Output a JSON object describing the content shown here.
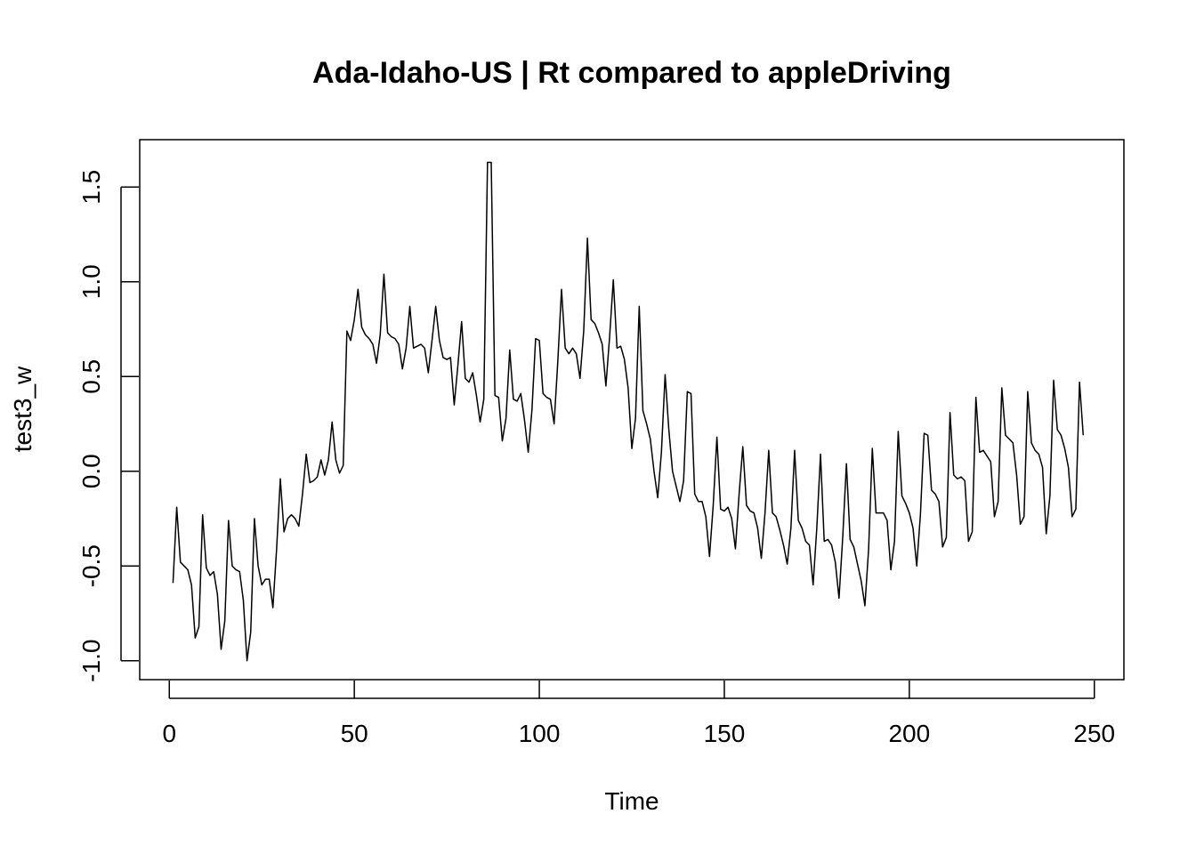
{
  "chart_data": {
    "type": "line",
    "title": "Ada-Idaho-US | Rt compared to appleDriving",
    "xlabel": "Time",
    "ylabel": "test3_w",
    "xlim": [
      -8,
      258
    ],
    "ylim": [
      -1.1,
      1.75
    ],
    "x_ticks": [
      0,
      50,
      100,
      150,
      200,
      250
    ],
    "y_ticks": [
      -1.0,
      -0.5,
      0.0,
      0.5,
      1.0,
      1.5
    ],
    "x_tick_labels": [
      "0",
      "50",
      "100",
      "150",
      "200",
      "250"
    ],
    "y_tick_labels": [
      "-1.0",
      "-0.5",
      "0.0",
      "0.5",
      "1.0",
      "1.5"
    ],
    "grid": false,
    "series": [
      {
        "x_start": 1,
        "values": [
          -0.59,
          -0.19,
          -0.48,
          -0.5,
          -0.52,
          -0.6,
          -0.88,
          -0.82,
          -0.23,
          -0.51,
          -0.55,
          -0.53,
          -0.65,
          -0.94,
          -0.79,
          -0.26,
          -0.5,
          -0.52,
          -0.53,
          -0.68,
          -1.0,
          -0.85,
          -0.25,
          -0.5,
          -0.6,
          -0.57,
          -0.57,
          -0.72,
          -0.41,
          -0.04,
          -0.32,
          -0.25,
          -0.23,
          -0.25,
          -0.29,
          -0.12,
          0.09,
          -0.06,
          -0.05,
          -0.03,
          0.06,
          -0.02,
          0.06,
          0.26,
          0.06,
          -0.01,
          0.03,
          0.74,
          0.69,
          0.8,
          0.96,
          0.76,
          0.72,
          0.7,
          0.67,
          0.57,
          0.72,
          1.04,
          0.73,
          0.71,
          0.7,
          0.67,
          0.54,
          0.65,
          0.87,
          0.65,
          0.66,
          0.67,
          0.65,
          0.52,
          0.69,
          0.87,
          0.69,
          0.6,
          0.59,
          0.6,
          0.35,
          0.56,
          0.79,
          0.49,
          0.47,
          0.52,
          0.4,
          0.26,
          0.38,
          1.63,
          1.63,
          0.4,
          0.39,
          0.16,
          0.28,
          0.64,
          0.38,
          0.37,
          0.41,
          0.27,
          0.1,
          0.32,
          0.7,
          0.69,
          0.41,
          0.39,
          0.38,
          0.25,
          0.58,
          0.96,
          0.65,
          0.62,
          0.65,
          0.62,
          0.49,
          0.74,
          1.23,
          0.8,
          0.78,
          0.73,
          0.67,
          0.45,
          0.71,
          1.01,
          0.65,
          0.66,
          0.59,
          0.44,
          0.12,
          0.28,
          0.87,
          0.32,
          0.25,
          0.17,
          0.0,
          -0.14,
          0.1,
          0.51,
          0.22,
          0.0,
          -0.08,
          -0.16,
          -0.05,
          0.42,
          0.41,
          -0.12,
          -0.16,
          -0.16,
          -0.24,
          -0.45,
          -0.18,
          0.18,
          -0.2,
          -0.21,
          -0.19,
          -0.25,
          -0.41,
          -0.12,
          0.13,
          -0.18,
          -0.21,
          -0.22,
          -0.3,
          -0.46,
          -0.22,
          0.11,
          -0.22,
          -0.24,
          -0.31,
          -0.39,
          -0.49,
          -0.3,
          0.11,
          -0.26,
          -0.3,
          -0.37,
          -0.39,
          -0.6,
          -0.3,
          0.09,
          -0.37,
          -0.36,
          -0.39,
          -0.48,
          -0.67,
          -0.35,
          0.04,
          -0.36,
          -0.4,
          -0.49,
          -0.58,
          -0.71,
          -0.41,
          0.12,
          -0.22,
          -0.22,
          -0.22,
          -0.26,
          -0.52,
          -0.37,
          0.21,
          -0.13,
          -0.17,
          -0.22,
          -0.3,
          -0.5,
          -0.23,
          0.2,
          0.19,
          -0.1,
          -0.12,
          -0.16,
          -0.4,
          -0.35,
          0.31,
          -0.02,
          -0.04,
          -0.03,
          -0.05,
          -0.37,
          -0.32,
          0.39,
          0.1,
          0.11,
          0.08,
          0.05,
          -0.24,
          -0.16,
          0.44,
          0.19,
          0.17,
          0.15,
          -0.02,
          -0.28,
          -0.24,
          0.42,
          0.15,
          0.11,
          0.09,
          0.02,
          -0.33,
          -0.13,
          0.48,
          0.22,
          0.19,
          0.12,
          0.02,
          -0.24,
          -0.2,
          0.47,
          0.19
        ]
      }
    ]
  }
}
